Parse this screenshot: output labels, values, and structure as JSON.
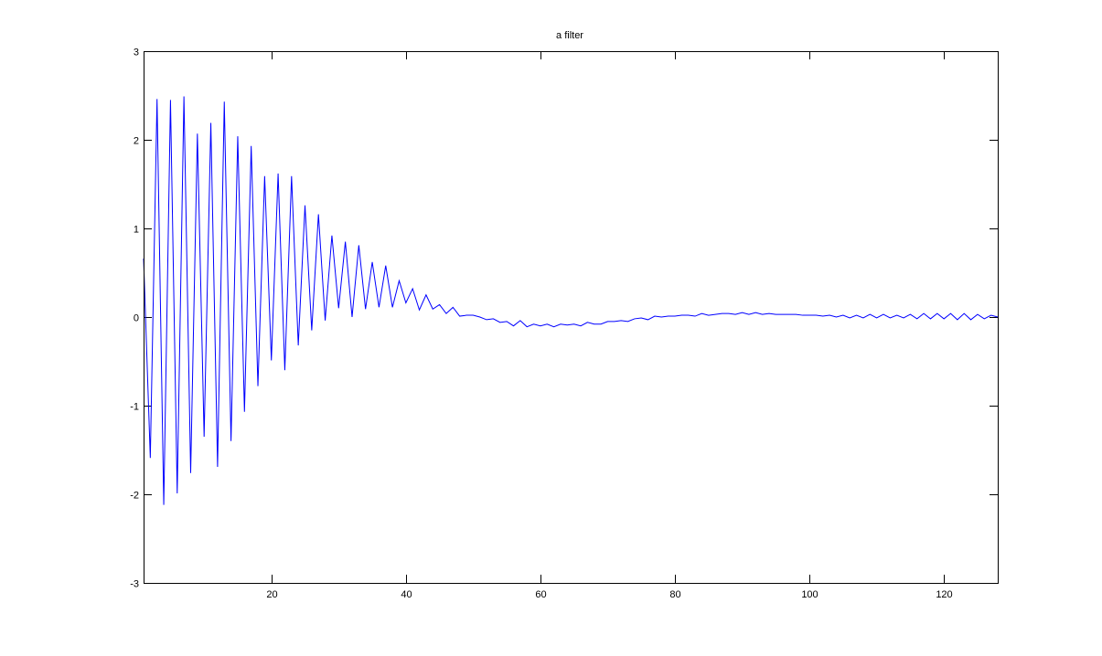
{
  "chart_data": {
    "type": "line",
    "title": "a filter",
    "xlabel": "",
    "ylabel": "",
    "xlim": [
      1,
      128
    ],
    "ylim": [
      -3,
      3
    ],
    "xticks": [
      20,
      40,
      60,
      80,
      100,
      120
    ],
    "yticks": [
      -3,
      -2,
      -1,
      0,
      1,
      2,
      3
    ],
    "grid": false,
    "line_color": "#0000ff",
    "axes_color": "#000000",
    "series": [
      {
        "x_start": 1,
        "values": [
          0.66,
          -1.59,
          2.46,
          -2.12,
          2.45,
          -1.99,
          2.49,
          -1.76,
          2.07,
          -1.35,
          2.19,
          -1.69,
          2.43,
          -1.4,
          2.04,
          -1.07,
          1.93,
          -0.78,
          1.59,
          -0.49,
          1.62,
          -0.6,
          1.59,
          -0.32,
          1.26,
          -0.15,
          1.16,
          -0.04,
          0.92,
          0.1,
          0.85,
          0.0,
          0.81,
          0.09,
          0.62,
          0.11,
          0.58,
          0.11,
          0.41,
          0.16,
          0.32,
          0.08,
          0.25,
          0.09,
          0.14,
          0.04,
          0.11,
          0.01,
          0.02,
          0.02,
          0.0,
          -0.03,
          -0.02,
          -0.06,
          -0.05,
          -0.1,
          -0.04,
          -0.11,
          -0.08,
          -0.1,
          -0.08,
          -0.11,
          -0.08,
          -0.09,
          -0.08,
          -0.1,
          -0.06,
          -0.08,
          -0.08,
          -0.05,
          -0.05,
          -0.04,
          -0.05,
          -0.02,
          -0.01,
          -0.03,
          0.01,
          0.0,
          0.01,
          0.01,
          0.02,
          0.02,
          0.01,
          0.04,
          0.02,
          0.03,
          0.04,
          0.04,
          0.03,
          0.05,
          0.03,
          0.05,
          0.03,
          0.04,
          0.03,
          0.03,
          0.03,
          0.03,
          0.02,
          0.02,
          0.02,
          0.01,
          0.02,
          0.0,
          0.02,
          -0.01,
          0.02,
          -0.01,
          0.03,
          -0.01,
          0.03,
          -0.01,
          0.02,
          -0.01,
          0.03,
          -0.02,
          0.04,
          -0.02,
          0.04,
          -0.02,
          0.04,
          -0.03,
          0.04,
          -0.03,
          0.03,
          -0.02,
          0.02,
          0.0
        ]
      }
    ]
  }
}
